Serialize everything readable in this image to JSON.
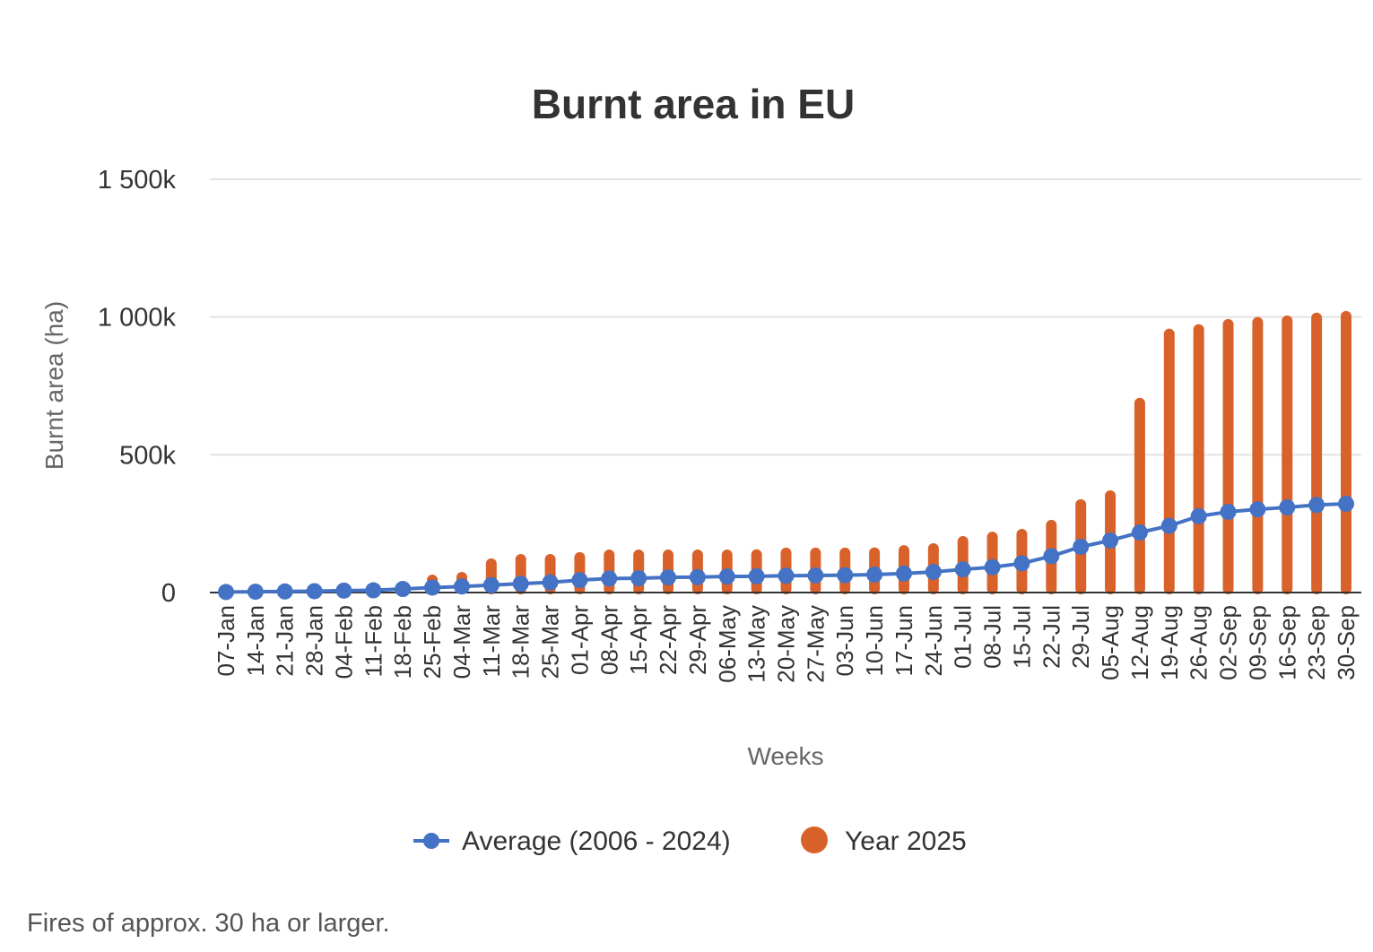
{
  "chart_data": {
    "type": "bar",
    "title": "Burnt area in EU",
    "xlabel": "Weeks",
    "ylabel": "Burnt area (ha)",
    "ylim": [
      0,
      1500000
    ],
    "yticks": [
      0,
      500000,
      1000000,
      1500000
    ],
    "ytick_labels": [
      "0",
      "500k",
      "1 000k",
      "1 500k"
    ],
    "grid": true,
    "legend_position": "bottom",
    "categories": [
      "07-Jan",
      "14-Jan",
      "21-Jan",
      "28-Jan",
      "04-Feb",
      "11-Feb",
      "18-Feb",
      "25-Feb",
      "04-Mar",
      "11-Mar",
      "18-Mar",
      "25-Mar",
      "01-Apr",
      "08-Apr",
      "15-Apr",
      "22-Apr",
      "29-Apr",
      "06-May",
      "13-May",
      "20-May",
      "27-May",
      "03-Jun",
      "10-Jun",
      "17-Jun",
      "24-Jun",
      "01-Jul",
      "08-Jul",
      "15-Jul",
      "22-Jul",
      "29-Jul",
      "05-Aug",
      "12-Aug",
      "19-Aug",
      "26-Aug",
      "02-Sep",
      "09-Sep",
      "16-Sep",
      "23-Sep",
      "30-Sep"
    ],
    "series": [
      {
        "name": "Average (2006 - 2024)",
        "type": "line",
        "color": "#4472c4",
        "values": [
          2000,
          3000,
          4000,
          5000,
          7000,
          8000,
          13000,
          18000,
          22000,
          27000,
          32000,
          37000,
          45000,
          51000,
          52000,
          55000,
          56000,
          58000,
          59000,
          61000,
          62000,
          63000,
          65000,
          69000,
          75000,
          84000,
          92000,
          106000,
          132000,
          166000,
          189000,
          218000,
          242000,
          277000,
          293000,
          302000,
          309000,
          318000,
          322000
        ]
      },
      {
        "name": "Year 2025",
        "type": "bar",
        "color": "#d9622b",
        "values": [
          1000,
          2000,
          3000,
          4000,
          5000,
          6000,
          8000,
          65000,
          75000,
          124000,
          140000,
          140000,
          147000,
          156000,
          156000,
          156000,
          156000,
          156000,
          157000,
          163000,
          163000,
          163000,
          164000,
          172000,
          179000,
          205000,
          221000,
          231000,
          264000,
          339000,
          371000,
          707000,
          958000,
          974000,
          993000,
          1000000,
          1006000,
          1016000,
          1022000
        ]
      }
    ]
  },
  "footnote": "Fires of approx. 30 ha or larger."
}
